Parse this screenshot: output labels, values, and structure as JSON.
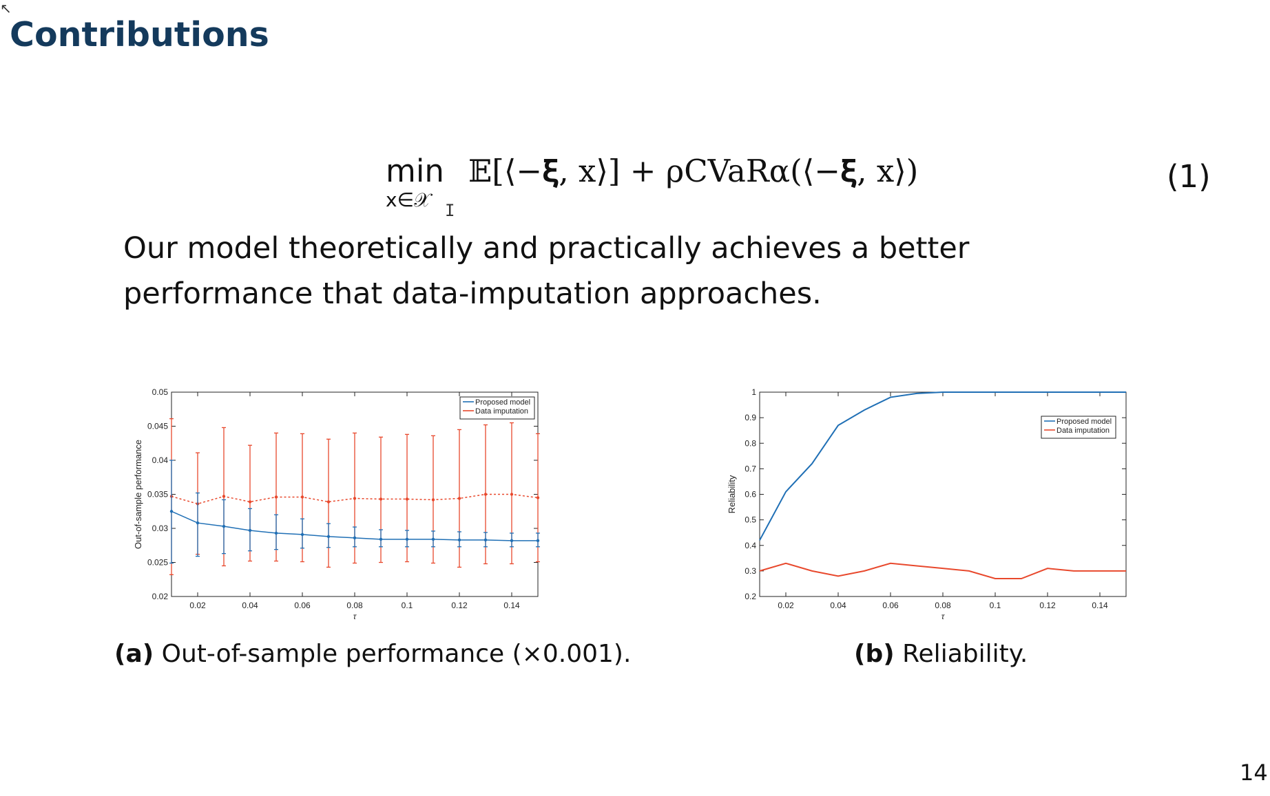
{
  "slide": {
    "title": "Contributions",
    "formula_min": "min",
    "formula_sub": "x∈𝒳",
    "formula_expr": "𝔼[⟨−𝛏, x⟩] + ρCVaRα(⟨−𝛏, x⟩)",
    "equation_number": "(1)",
    "body": "Our model theoretically and practically achieves a better performance that data-imputation approaches.",
    "caption_a_label": "(a)",
    "caption_a_text": "Out-of-sample performance (×0.001).",
    "caption_b_label": "(b)",
    "caption_b_text": "Reliability.",
    "page_number": "14"
  },
  "colors": {
    "title": "#143a5c",
    "proposed": "#1f6fb5",
    "imputation": "#e8482c"
  },
  "chart_data": [
    {
      "type": "line",
      "xlabel": "τ",
      "ylabel": "Out-of-sample performance",
      "xlim": [
        0.01,
        0.15
      ],
      "ylim": [
        0.02,
        0.05
      ],
      "xticks": [
        0.02,
        0.04,
        0.06,
        0.08,
        0.1,
        0.12,
        0.14
      ],
      "xtick_labels": [
        "0.02",
        "0.04",
        "0.06",
        "0.08",
        "0.1",
        "0.12",
        "0.14"
      ],
      "yticks": [
        0.02,
        0.025,
        0.03,
        0.035,
        0.04,
        0.045,
        0.05
      ],
      "ytick_labels": [
        "0.02",
        "0.025",
        "0.03",
        "0.035",
        "0.04",
        "0.045",
        "0.05"
      ],
      "legend_position": "top-right",
      "x": [
        0.01,
        0.02,
        0.03,
        0.04,
        0.05,
        0.06,
        0.07,
        0.08,
        0.09,
        0.1,
        0.11,
        0.12,
        0.13,
        0.14,
        0.15
      ],
      "series": [
        {
          "name": "Data imputation",
          "values": [
            0.0347,
            0.0336,
            0.0347,
            0.0339,
            0.0346,
            0.0346,
            0.0339,
            0.0344,
            0.0343,
            0.0343,
            0.0342,
            0.0344,
            0.035,
            0.035,
            0.0345
          ],
          "error_lower": [
            0.0232,
            0.0262,
            0.0245,
            0.0252,
            0.0252,
            0.0251,
            0.0243,
            0.0249,
            0.025,
            0.0251,
            0.0249,
            0.0243,
            0.0248,
            0.0248,
            0.0251
          ],
          "error_upper": [
            0.0461,
            0.0411,
            0.0448,
            0.0422,
            0.044,
            0.0439,
            0.0431,
            0.044,
            0.0434,
            0.0438,
            0.0436,
            0.0445,
            0.0452,
            0.0455,
            0.0439
          ]
        },
        {
          "name": "Proposed model",
          "values": [
            0.0325,
            0.0308,
            0.0303,
            0.0297,
            0.0293,
            0.0291,
            0.0288,
            0.0286,
            0.0284,
            0.0284,
            0.0284,
            0.0283,
            0.0283,
            0.0282,
            0.0282
          ],
          "error_lower": [
            0.0249,
            0.0259,
            0.0263,
            0.0267,
            0.0269,
            0.0271,
            0.0272,
            0.0273,
            0.0273,
            0.0273,
            0.0273,
            0.0273,
            0.0273,
            0.0273,
            0.0273
          ],
          "error_upper": [
            0.04,
            0.0352,
            0.0342,
            0.0329,
            0.032,
            0.0314,
            0.0307,
            0.0302,
            0.0298,
            0.0297,
            0.0296,
            0.0295,
            0.0294,
            0.0293,
            0.0293
          ]
        }
      ]
    },
    {
      "type": "line",
      "xlabel": "τ",
      "ylabel": "Reliability",
      "xlim": [
        0.01,
        0.15
      ],
      "ylim": [
        0.2,
        1
      ],
      "xticks": [
        0.02,
        0.04,
        0.06,
        0.08,
        0.1,
        0.12,
        0.14
      ],
      "xtick_labels": [
        "0.02",
        "0.04",
        "0.06",
        "0.08",
        "0.1",
        "0.12",
        "0.14"
      ],
      "yticks": [
        0.2,
        0.3,
        0.4,
        0.5,
        0.6,
        0.7,
        0.8,
        0.9,
        1
      ],
      "ytick_labels": [
        "0.2",
        "0.3",
        "0.4",
        "0.5",
        "0.6",
        "0.7",
        "0.8",
        "0.9",
        "1"
      ],
      "legend_position": "top-right",
      "x": [
        0.01,
        0.02,
        0.03,
        0.04,
        0.05,
        0.06,
        0.07,
        0.08,
        0.09,
        0.1,
        0.11,
        0.12,
        0.13,
        0.14,
        0.15
      ],
      "series": [
        {
          "name": "Proposed model",
          "values": [
            0.42,
            0.61,
            0.72,
            0.87,
            0.93,
            0.98,
            0.995,
            1.0,
            1.0,
            1.0,
            1.0,
            1.0,
            1.0,
            1.0,
            1.0
          ]
        },
        {
          "name": "Data imputation",
          "values": [
            0.3,
            0.33,
            0.3,
            0.28,
            0.3,
            0.33,
            0.32,
            0.31,
            0.3,
            0.27,
            0.27,
            0.31,
            0.3,
            0.3,
            0.3
          ]
        }
      ]
    }
  ]
}
